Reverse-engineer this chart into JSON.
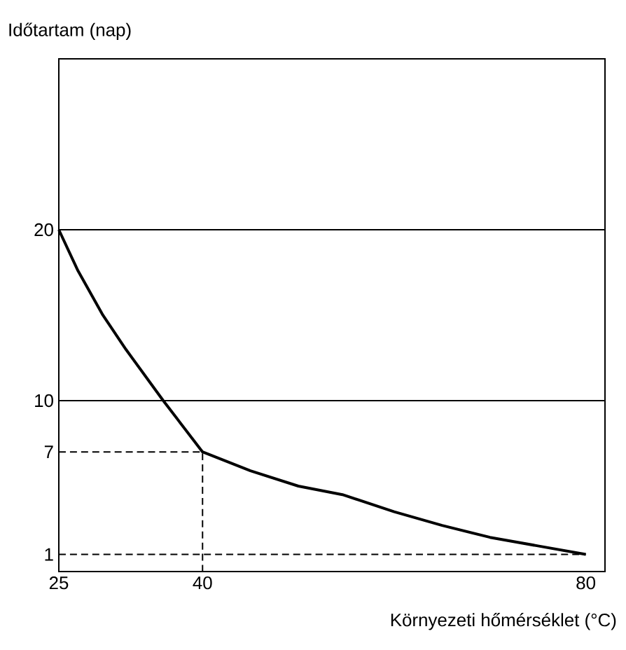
{
  "chart_data": {
    "type": "line",
    "xlabel": "Környezeti hőmérséklet (°C)",
    "ylabel": "Időtartam (nap)",
    "xlim": [
      25,
      82
    ],
    "ylim": [
      0,
      30
    ],
    "xticks": [
      25,
      40,
      80
    ],
    "yticks": [
      1,
      7,
      10,
      20
    ],
    "marker": "none",
    "ref_lines": [
      {
        "axis": "y",
        "value": 10,
        "color": "#000000"
      },
      {
        "axis": "y",
        "value": 20,
        "color": "#000000"
      }
    ],
    "series": [
      {
        "color": "#000000",
        "line_style": "solid",
        "x": [
          25,
          27,
          29.6,
          32,
          35.9,
          40,
          45,
          50,
          54.6,
          60,
          65,
          70,
          75,
          80
        ],
        "values": [
          20,
          17.6,
          15,
          13,
          10,
          7,
          5.9,
          5,
          4.5,
          3.5,
          2.7,
          2,
          1.5,
          1
        ]
      },
      {
        "color": "#000000",
        "line_style": "dashed",
        "x": [
          25,
          40,
          40
        ],
        "values": [
          7,
          7,
          0
        ]
      },
      {
        "color": "#000000",
        "line_style": "dashed",
        "x": [
          25,
          80
        ],
        "values": [
          1,
          1
        ]
      }
    ]
  }
}
